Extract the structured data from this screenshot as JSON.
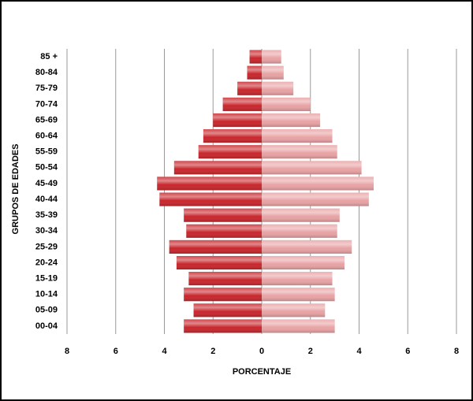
{
  "chart_data": {
    "type": "pyramid",
    "xlabel": "PORCENTAJE",
    "ylabel": "GRUPOS DE EDADES",
    "categories": [
      "00-04",
      "05-09",
      "10-14",
      "15-19",
      "20-24",
      "25-29",
      "30-34",
      "35-39",
      "40-44",
      "45-49",
      "50-54",
      "55-59",
      "60-64",
      "65-69",
      "70-74",
      "75-79",
      "80-84",
      "85 +"
    ],
    "series": [
      {
        "color": "#c8262c",
        "values": [
          -3.2,
          -2.8,
          -3.2,
          -3.0,
          -3.5,
          -3.8,
          -3.1,
          -3.2,
          -4.2,
          -4.3,
          -3.6,
          -2.6,
          -2.4,
          -2.0,
          -1.6,
          -1.0,
          -0.6,
          -0.5
        ]
      },
      {
        "color": "#e8a2a4",
        "values": [
          3.0,
          2.6,
          3.0,
          2.9,
          3.4,
          3.7,
          3.1,
          3.2,
          4.4,
          4.6,
          4.1,
          3.1,
          2.9,
          2.4,
          2.0,
          1.3,
          0.9,
          0.8
        ]
      }
    ],
    "xlim": [
      -8,
      8
    ],
    "xticks": [
      {
        "value": -8,
        "label": "8"
      },
      {
        "value": -6,
        "label": "6"
      },
      {
        "value": -4,
        "label": "4"
      },
      {
        "value": -2,
        "label": "2"
      },
      0,
      2,
      4,
      6,
      8
    ],
    "grid": true
  }
}
